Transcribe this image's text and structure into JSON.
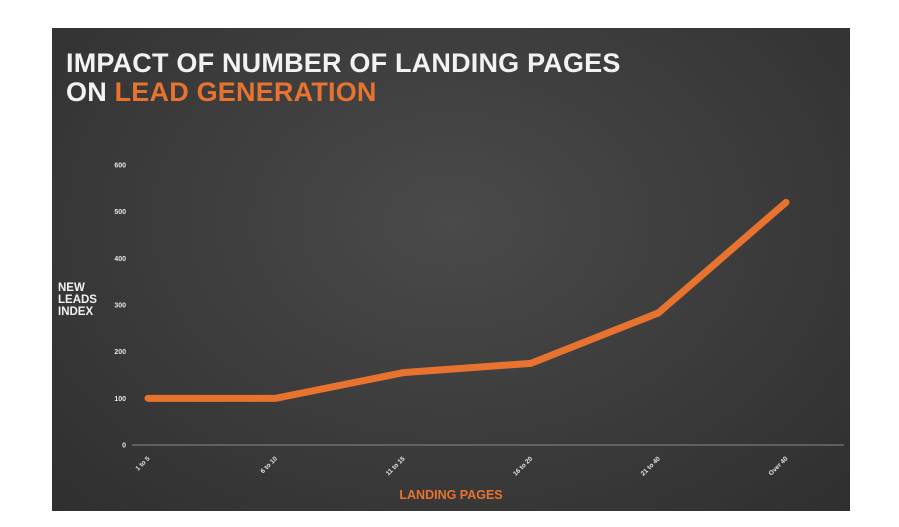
{
  "title": {
    "line1": "IMPACT OF NUMBER OF LANDING PAGES",
    "line2_prefix": "ON ",
    "line2_accent": "LEAD GENERATION"
  },
  "chart_data": {
    "type": "line",
    "categories": [
      "1 to 5",
      "6 to 10",
      "11 to 15",
      "16 to 20",
      "21 to 40",
      "Over 40"
    ],
    "series": [
      {
        "values": [
          100,
          100,
          155,
          175,
          283,
          520
        ],
        "color": "#e8732e"
      }
    ],
    "xlabel": "LANDING PAGES",
    "ylabel": "NEW\nLEADS\nINDEX",
    "ylim": [
      0,
      600
    ],
    "yticks": [
      0,
      100,
      200,
      300,
      400,
      500,
      600
    ],
    "grid": false,
    "legend": "none"
  },
  "colors": {
    "accent": "#e8732e",
    "text": "#f2f2f2",
    "axis": "#8a8a8a"
  }
}
